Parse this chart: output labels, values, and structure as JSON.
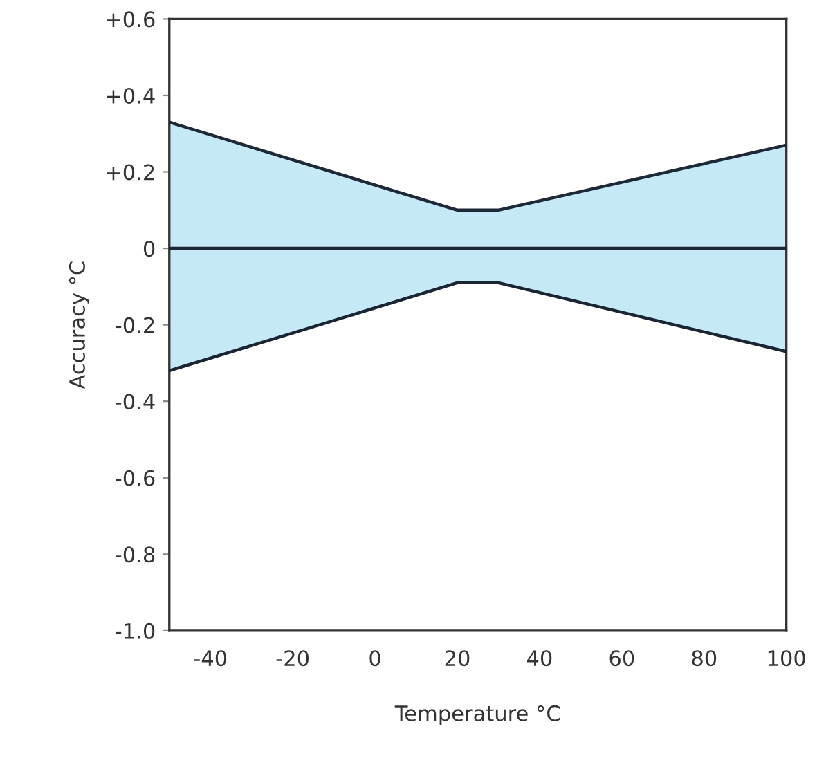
{
  "chart_data": {
    "type": "line",
    "xlabel": "Temperature °C",
    "ylabel": "Accuracy °C",
    "xlim": [
      -50,
      100
    ],
    "xticks": [
      -40,
      -20,
      0,
      20,
      40,
      60,
      80,
      100
    ],
    "ylim": [
      -1.0,
      0.6
    ],
    "yticks": [
      {
        "value": 0.6,
        "label": "+0.6"
      },
      {
        "value": 0.4,
        "label": "+0.4"
      },
      {
        "value": 0.2,
        "label": "+0.2"
      },
      0,
      -0.2,
      -0.4,
      -0.6,
      -0.8,
      {
        "value": -1.0,
        "label": "-1.0"
      }
    ],
    "grid": false,
    "legend": false,
    "marker": "none",
    "line_style": "solid",
    "series": [
      {
        "color": "#1b2735",
        "x": [
          -50,
          20,
          30,
          100
        ],
        "values": [
          0,
          0,
          0,
          0
        ],
        "lower": [
          -0.32,
          -0.09,
          -0.09,
          -0.27
        ],
        "upper": [
          0.33,
          0.1,
          0.1,
          0.27
        ]
      },
      {
        "color": "#1d2937",
        "x": [
          -50,
          20,
          30,
          100
        ],
        "values": [
          0.33,
          0.1,
          0.1,
          0.27
        ]
      },
      {
        "color": "#192533",
        "x": [
          -50,
          20,
          30,
          100
        ],
        "values": [
          -0.32,
          -0.09,
          -0.09,
          -0.27
        ]
      }
    ]
  }
}
